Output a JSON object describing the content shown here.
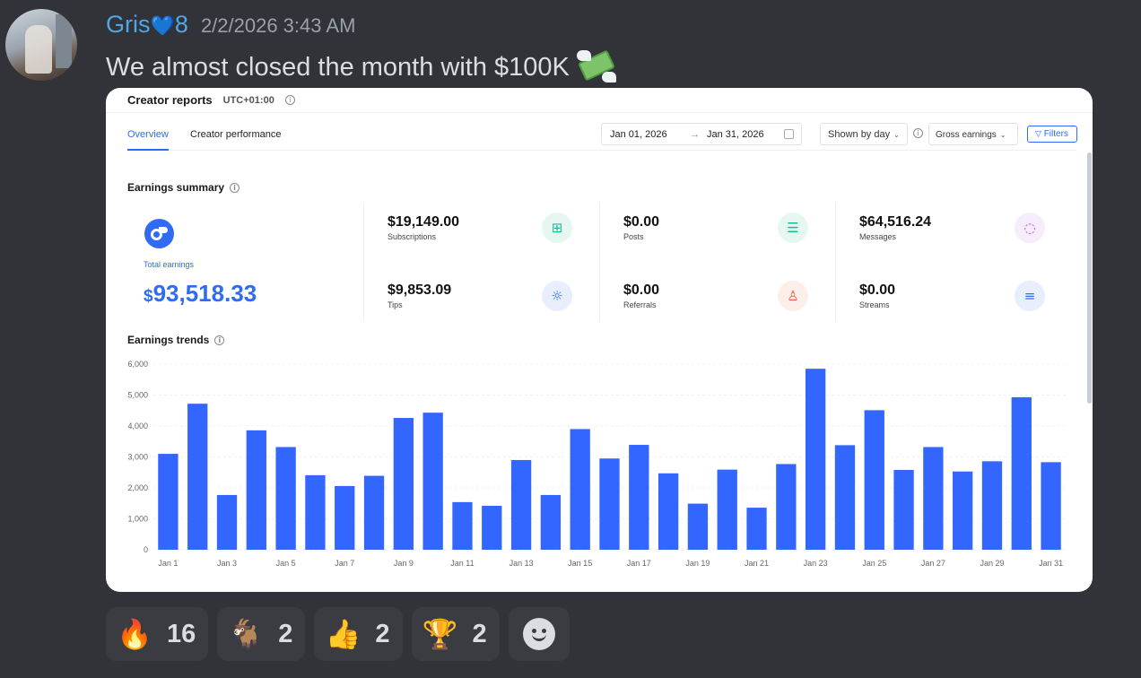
{
  "message": {
    "username": "Gris",
    "username_badge": "💙",
    "username_suffix": "8",
    "timestamp": "2/2/2026 3:43 AM",
    "text": "We almost closed the month with $100K",
    "text_emoji": "money-with-wings-icon"
  },
  "report": {
    "title": "Creator reports",
    "timezone": "UTC+01:00",
    "tabs": [
      {
        "label": "Overview",
        "active": true
      },
      {
        "label": "Creator performance",
        "active": false
      }
    ],
    "date_from": "Jan 01, 2026",
    "date_arrow": "→",
    "date_to": "Jan 31, 2026",
    "shown_by": "Shown by day",
    "metric_select": "Gross earnings",
    "filters_label": "Filters",
    "summary_title": "Earnings summary",
    "total": {
      "label": "Total earnings",
      "currency": "$",
      "value": "93,518.33"
    },
    "metrics": [
      {
        "value": "$19,149.00",
        "label": "Subscriptions",
        "icon": "subscription-icon",
        "color": "#1fb89a"
      },
      {
        "value": "$0.00",
        "label": "Posts",
        "icon": "post-icon",
        "color": "#1fb89a"
      },
      {
        "value": "$64,516.24",
        "label": "Messages",
        "icon": "message-icon",
        "color": "#c04be0"
      },
      {
        "value": "$9,853.09",
        "label": "Tips",
        "icon": "lightbulb-icon",
        "color": "#2f6bf5"
      },
      {
        "value": "$0.00",
        "label": "Referrals",
        "icon": "referral-icon",
        "color": "#e0603e"
      },
      {
        "value": "$0.00",
        "label": "Streams",
        "icon": "stream-icon",
        "color": "#2f6bf5"
      }
    ],
    "trends_title": "Earnings trends"
  },
  "chart_data": {
    "type": "bar",
    "title": "Earnings trends",
    "categories": [
      "Jan 1",
      "Jan 2",
      "Jan 3",
      "Jan 4",
      "Jan 5",
      "Jan 6",
      "Jan 7",
      "Jan 8",
      "Jan 9",
      "Jan 10",
      "Jan 11",
      "Jan 12",
      "Jan 13",
      "Jan 14",
      "Jan 15",
      "Jan 16",
      "Jan 17",
      "Jan 18",
      "Jan 19",
      "Jan 20",
      "Jan 21",
      "Jan 22",
      "Jan 23",
      "Jan 24",
      "Jan 25",
      "Jan 26",
      "Jan 27",
      "Jan 28",
      "Jan 29",
      "Jan 30",
      "Jan 31"
    ],
    "x_tick_labels": [
      "Jan 1",
      "Jan 3",
      "Jan 5",
      "Jan 7",
      "Jan 9",
      "Jan 11",
      "Jan 13",
      "Jan 15",
      "Jan 17",
      "Jan 19",
      "Jan 21",
      "Jan 23",
      "Jan 25",
      "Jan 27",
      "Jan 29",
      "Jan 31"
    ],
    "values": [
      3100,
      4720,
      1770,
      3860,
      3320,
      2410,
      2060,
      2390,
      4260,
      4430,
      1540,
      1420,
      2900,
      1770,
      3900,
      2950,
      3390,
      2470,
      1490,
      2590,
      1360,
      2770,
      5850,
      3380,
      4510,
      2580,
      3320,
      2530,
      2860,
      4930,
      2830
    ],
    "y_ticks": [
      "0",
      "1,000",
      "2,000",
      "3,000",
      "4,000",
      "5,000",
      "6,000"
    ],
    "ylim": [
      0,
      6000
    ],
    "bar_color": "#3366ff",
    "grid": true
  },
  "reactions": [
    {
      "emoji": "🔥",
      "name": "fire-icon",
      "count": "16"
    },
    {
      "emoji": "🐐",
      "name": "goat-icon",
      "count": "2"
    },
    {
      "emoji": "👍",
      "name": "thumbs-up-icon",
      "count": "2"
    },
    {
      "emoji": "🏆",
      "name": "trophy-icon",
      "count": "2"
    }
  ]
}
